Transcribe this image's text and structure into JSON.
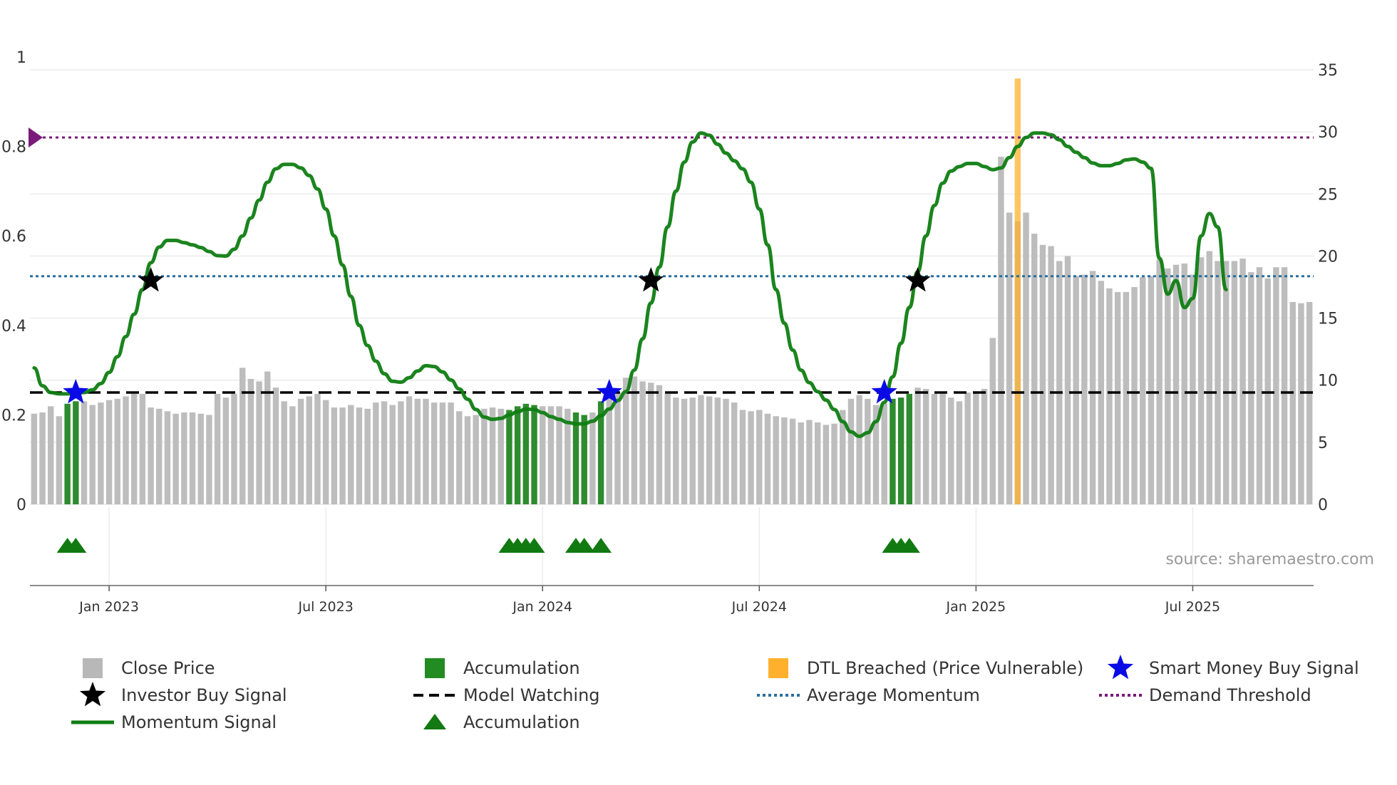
{
  "chart_data": {
    "type": "bar",
    "source_label": "source: sharemaestro.com",
    "y_left": {
      "min": 0,
      "max": 1,
      "ticks": [
        0,
        0.2,
        0.4,
        0.6,
        0.8,
        1
      ],
      "tick_labels": [
        "0",
        "0.2",
        "0.4",
        "0.6",
        "0.8",
        "1"
      ]
    },
    "y_right": {
      "min": 0,
      "max": 35,
      "ticks": [
        0,
        5,
        10,
        15,
        20,
        25,
        30,
        35
      ],
      "tick_labels": [
        "0",
        "5",
        "10",
        "15",
        "20",
        "25",
        "30",
        "35"
      ]
    },
    "x_ticks": [
      {
        "index": 9,
        "label": "Jan 2023"
      },
      {
        "index": 35,
        "label": "Jul 2023"
      },
      {
        "index": 61,
        "label": "Jan 2024"
      },
      {
        "index": 87,
        "label": "Jul 2024"
      },
      {
        "index": 113,
        "label": "Jan 2025"
      },
      {
        "index": 139,
        "label": "Jul 2025"
      }
    ],
    "close_price": [
      7.3,
      7.4,
      7.9,
      7.1,
      8.1,
      8.3,
      8.3,
      8.0,
      8.2,
      8.4,
      8.5,
      8.7,
      8.9,
      8.9,
      7.8,
      7.7,
      7.5,
      7.3,
      7.4,
      7.4,
      7.3,
      7.2,
      8.9,
      8.6,
      8.9,
      11.0,
      10.1,
      9.9,
      10.7,
      9.4,
      8.3,
      7.9,
      8.5,
      8.7,
      8.9,
      8.4,
      7.8,
      7.8,
      8.0,
      7.8,
      7.7,
      8.2,
      8.3,
      8.0,
      8.3,
      8.7,
      8.5,
      8.5,
      8.2,
      8.2,
      8.2,
      7.5,
      7.1,
      7.2,
      7.7,
      7.8,
      7.7,
      7.6,
      7.9,
      8.1,
      8.0,
      7.9,
      7.9,
      7.9,
      7.7,
      7.4,
      7.2,
      7.4,
      8.3,
      8.6,
      9.0,
      10.2,
      10.3,
      9.9,
      9.8,
      9.6,
      8.9,
      8.6,
      8.5,
      8.6,
      8.8,
      8.7,
      8.6,
      8.5,
      8.2,
      7.6,
      7.5,
      7.6,
      7.3,
      7.1,
      7.0,
      6.9,
      6.6,
      6.8,
      6.6,
      6.4,
      6.5,
      7.6,
      8.5,
      8.8,
      8.5,
      8.0,
      8.1,
      8.5,
      8.6,
      8.9,
      9.4,
      9.3,
      8.9,
      8.9,
      8.6,
      8.3,
      9.0,
      9.1,
      9.3,
      13.4,
      28.0,
      23.5,
      22.8,
      23.5,
      21.8,
      20.9,
      20.8,
      19.6,
      20.0,
      18.4,
      18.5,
      18.8,
      18.0,
      17.4,
      17.1,
      17.1,
      17.5,
      18.3,
      18.4,
      19.7,
      19.0,
      19.3,
      19.4,
      18.5,
      19.9,
      20.4,
      19.6,
      19.6,
      19.6,
      19.8,
      18.7,
      19.1,
      18.2,
      19.1,
      19.1,
      16.3,
      16.2,
      16.3
    ],
    "accumulation_bar_indices": [
      4,
      5,
      57,
      58,
      59,
      60,
      65,
      66,
      68,
      103,
      104,
      105
    ],
    "accumulation_marker_indices": [
      4,
      5,
      57,
      58,
      59,
      60,
      65,
      66,
      68,
      103,
      104,
      105
    ],
    "dtl_breached_index": 118,
    "dtl_breached_level": 34.3,
    "model_watching_level": 0.25,
    "average_momentum_level": 0.51,
    "demand_threshold_level": 0.82,
    "momentum_signal": [
      [
        0,
        0.305
      ],
      [
        1,
        0.265
      ],
      [
        2,
        0.25
      ],
      [
        3,
        0.247
      ],
      [
        4,
        0.247
      ],
      [
        5,
        0.248
      ],
      [
        6,
        0.25
      ],
      [
        7,
        0.256
      ],
      [
        8,
        0.27
      ],
      [
        9,
        0.295
      ],
      [
        10,
        0.33
      ],
      [
        11,
        0.375
      ],
      [
        12,
        0.425
      ],
      [
        13,
        0.48
      ],
      [
        14,
        0.54
      ],
      [
        15,
        0.575
      ],
      [
        16,
        0.59
      ],
      [
        17,
        0.59
      ],
      [
        18,
        0.585
      ],
      [
        19,
        0.58
      ],
      [
        20,
        0.574
      ],
      [
        21,
        0.565
      ],
      [
        22,
        0.556
      ],
      [
        23,
        0.555
      ],
      [
        24,
        0.57
      ],
      [
        25,
        0.6
      ],
      [
        26,
        0.64
      ],
      [
        27,
        0.68
      ],
      [
        28,
        0.72
      ],
      [
        29,
        0.75
      ],
      [
        30,
        0.76
      ],
      [
        31,
        0.76
      ],
      [
        32,
        0.752
      ],
      [
        33,
        0.735
      ],
      [
        34,
        0.705
      ],
      [
        35,
        0.66
      ],
      [
        36,
        0.6
      ],
      [
        37,
        0.535
      ],
      [
        38,
        0.465
      ],
      [
        39,
        0.4
      ],
      [
        40,
        0.355
      ],
      [
        41,
        0.32
      ],
      [
        42,
        0.292
      ],
      [
        43,
        0.275
      ],
      [
        44,
        0.273
      ],
      [
        45,
        0.283
      ],
      [
        46,
        0.298
      ],
      [
        47,
        0.31
      ],
      [
        48,
        0.308
      ],
      [
        49,
        0.296
      ],
      [
        50,
        0.278
      ],
      [
        51,
        0.258
      ],
      [
        52,
        0.235
      ],
      [
        53,
        0.212
      ],
      [
        54,
        0.195
      ],
      [
        55,
        0.19
      ],
      [
        56,
        0.192
      ],
      [
        57,
        0.2
      ],
      [
        58,
        0.207
      ],
      [
        59,
        0.213
      ],
      [
        60,
        0.212
      ],
      [
        61,
        0.205
      ],
      [
        62,
        0.196
      ],
      [
        63,
        0.19
      ],
      [
        64,
        0.183
      ],
      [
        65,
        0.18
      ],
      [
        66,
        0.18
      ],
      [
        67,
        0.186
      ],
      [
        68,
        0.198
      ],
      [
        69,
        0.213
      ],
      [
        70,
        0.232
      ],
      [
        71,
        0.252
      ],
      [
        72,
        0.3
      ],
      [
        73,
        0.37
      ],
      [
        74,
        0.45
      ],
      [
        75,
        0.53
      ],
      [
        76,
        0.62
      ],
      [
        77,
        0.7
      ],
      [
        78,
        0.765
      ],
      [
        79,
        0.81
      ],
      [
        80,
        0.83
      ],
      [
        81,
        0.825
      ],
      [
        82,
        0.805
      ],
      [
        83,
        0.785
      ],
      [
        84,
        0.768
      ],
      [
        85,
        0.75
      ],
      [
        86,
        0.72
      ],
      [
        87,
        0.66
      ],
      [
        88,
        0.58
      ],
      [
        89,
        0.48
      ],
      [
        90,
        0.405
      ],
      [
        91,
        0.345
      ],
      [
        92,
        0.3
      ],
      [
        93,
        0.272
      ],
      [
        94,
        0.252
      ],
      [
        95,
        0.233
      ],
      [
        96,
        0.212
      ],
      [
        97,
        0.185
      ],
      [
        98,
        0.162
      ],
      [
        99,
        0.152
      ],
      [
        100,
        0.16
      ],
      [
        101,
        0.185
      ],
      [
        102,
        0.228
      ],
      [
        103,
        0.285
      ],
      [
        104,
        0.36
      ],
      [
        105,
        0.44
      ],
      [
        106,
        0.52
      ],
      [
        107,
        0.6
      ],
      [
        108,
        0.668
      ],
      [
        109,
        0.718
      ],
      [
        110,
        0.745
      ],
      [
        111,
        0.755
      ],
      [
        112,
        0.762
      ],
      [
        113,
        0.762
      ],
      [
        114,
        0.755
      ],
      [
        115,
        0.748
      ],
      [
        116,
        0.752
      ],
      [
        117,
        0.775
      ],
      [
        118,
        0.8
      ],
      [
        119,
        0.82
      ],
      [
        120,
        0.83
      ],
      [
        121,
        0.83
      ],
      [
        122,
        0.826
      ],
      [
        123,
        0.815
      ],
      [
        124,
        0.8
      ],
      [
        125,
        0.787
      ],
      [
        126,
        0.775
      ],
      [
        127,
        0.763
      ],
      [
        128,
        0.757
      ],
      [
        129,
        0.757
      ],
      [
        130,
        0.762
      ],
      [
        131,
        0.77
      ],
      [
        132,
        0.772
      ],
      [
        133,
        0.765
      ],
      [
        134,
        0.751
      ],
      [
        135,
        0.55
      ],
      [
        136,
        0.47
      ],
      [
        137,
        0.5
      ],
      [
        138,
        0.44
      ],
      [
        139,
        0.46
      ],
      [
        140,
        0.6
      ],
      [
        141,
        0.65
      ],
      [
        142,
        0.62
      ],
      [
        143,
        0.48
      ]
    ],
    "legend": [
      {
        "label": "Close Price",
        "symbol": "square",
        "color": "#b8b8b8"
      },
      {
        "label": "Accumulation",
        "symbol": "square",
        "color": "#228b22"
      },
      {
        "label": "DTL Breached (Price Vulnerable)",
        "symbol": "square",
        "color": "#ffb12e"
      },
      {
        "label": "Smart Money Buy Signal",
        "symbol": "star",
        "color": "#0a0ae6"
      },
      {
        "label": "Investor Buy Signal",
        "symbol": "star",
        "color": "#000000"
      },
      {
        "label": "Model Watching",
        "symbol": "dashed",
        "color": "#000000"
      },
      {
        "label": "Average Momentum",
        "symbol": "dotted",
        "color": "#2a6f9e"
      },
      {
        "label": "Demand Threshold",
        "symbol": "dotted",
        "color": "#7a1a7a"
      },
      {
        "label": "Momentum Signal",
        "symbol": "line",
        "color": "#0f7d12"
      },
      {
        "label": "Accumulation",
        "symbol": "triangle",
        "color": "#117a11"
      }
    ],
    "investor_buy_signals": [
      {
        "index": 14,
        "value": 0.5
      },
      {
        "index": 74,
        "value": 0.5
      },
      {
        "index": 106,
        "value": 0.5
      }
    ],
    "smart_money_buy_signals": [
      {
        "index": 5,
        "value": 0.25
      },
      {
        "index": 69,
        "value": 0.25
      },
      {
        "index": 102,
        "value": 0.25
      }
    ],
    "colors": {
      "close_price": "#bdbdbd",
      "accumulation": "#2e8b2e",
      "dtl": "#ffb12e",
      "momentum": "#0f7d12",
      "model_watching": "#000000",
      "average_momentum": "#2a6f9e",
      "demand_threshold": "#7a1a7a",
      "grid": "#ececec",
      "smart_money_star": "#0a0ae6",
      "investor_star": "#000000",
      "triangle": "#117a11"
    }
  }
}
